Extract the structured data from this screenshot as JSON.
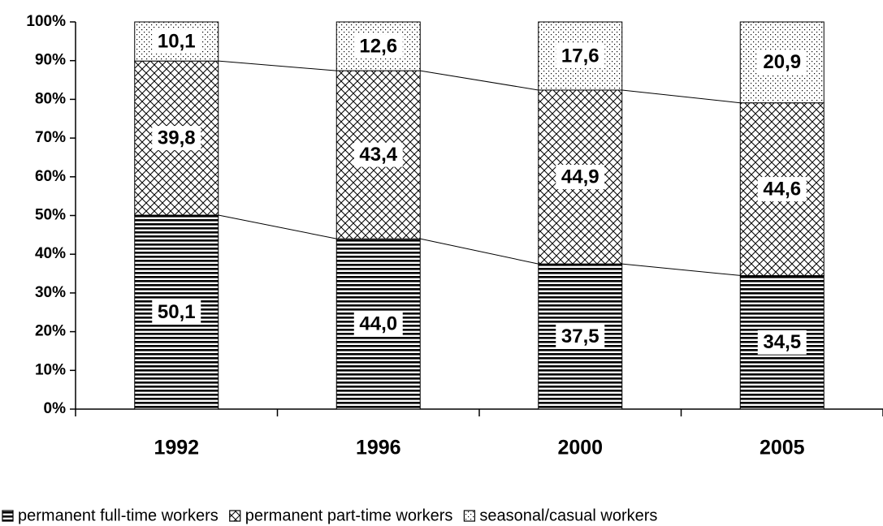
{
  "chart_data": {
    "type": "stacked_bar_100",
    "categories": [
      "1992",
      "1996",
      "2000",
      "2005"
    ],
    "series": [
      {
        "name": "permanent full-time workers",
        "color": "#000000",
        "values": [
          50.1,
          44.0,
          37.5,
          34.5
        ],
        "value_labels": [
          "50,1",
          "44,0",
          "37,5",
          "34,5"
        ]
      },
      {
        "name": "permanent part-time workers",
        "color": "#000000",
        "values": [
          39.8,
          43.4,
          44.9,
          44.6
        ],
        "value_labels": [
          "39,8",
          "43,4",
          "44,9",
          "44,6"
        ]
      },
      {
        "name": "seasonal/casual workers",
        "color": "#000000",
        "values": [
          10.1,
          12.6,
          17.6,
          20.9
        ],
        "value_labels": [
          "10,1",
          "12,6",
          "17,6",
          "20,9"
        ]
      }
    ],
    "ylim": [
      0,
      100
    ],
    "yticks": [
      {
        "value": 0,
        "label": "0%"
      },
      {
        "value": 10,
        "label": "10%"
      },
      {
        "value": 20,
        "label": "20%"
      },
      {
        "value": 30,
        "label": "30%"
      },
      {
        "value": 40,
        "label": "40%"
      },
      {
        "value": 50,
        "label": "50%"
      },
      {
        "value": 60,
        "label": "60%"
      },
      {
        "value": 70,
        "label": "70%"
      },
      {
        "value": 80,
        "label": "80%"
      },
      {
        "value": 90,
        "label": "90%"
      },
      {
        "value": 100,
        "label": "100%"
      }
    ],
    "legend": "bottom"
  }
}
